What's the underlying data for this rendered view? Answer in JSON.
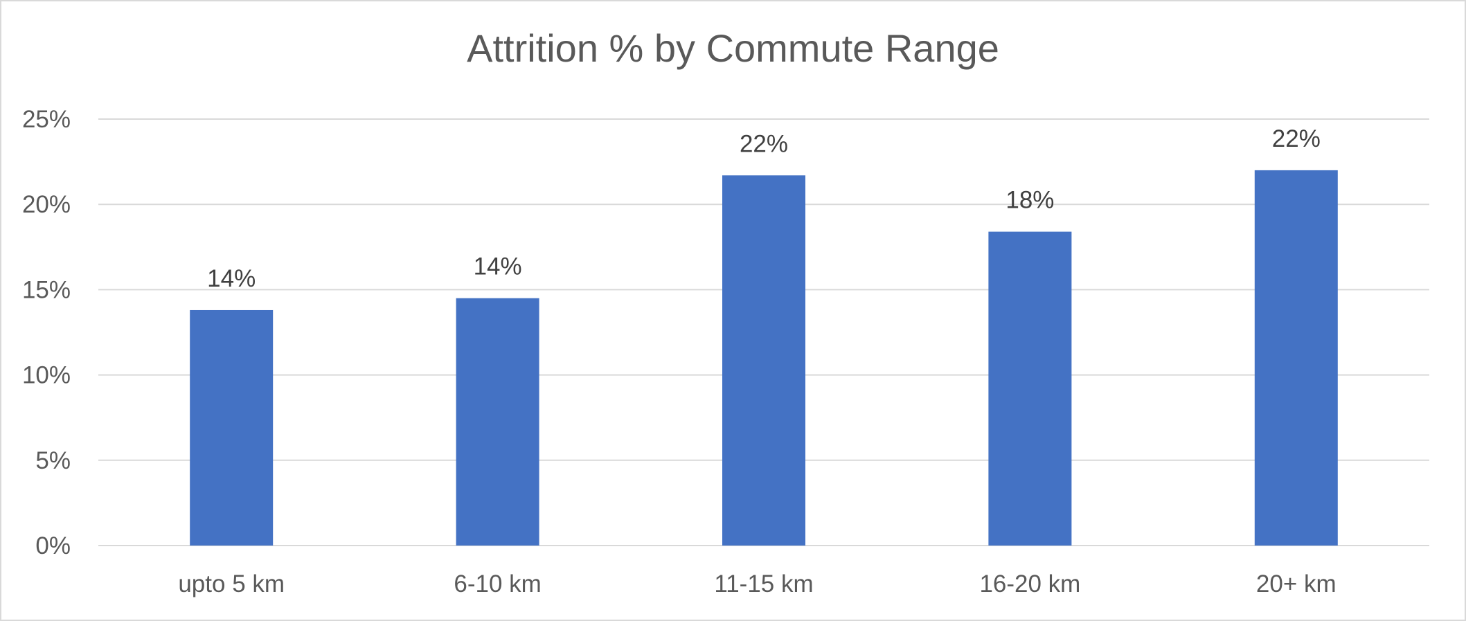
{
  "chart_data": {
    "type": "bar",
    "title": "Attrition % by Commute Range",
    "xlabel": "",
    "ylabel": "",
    "categories": [
      "upto 5 km",
      "6-10 km",
      "11-15 km",
      "16-20 km",
      "20+ km"
    ],
    "values": [
      13.8,
      14.5,
      21.7,
      18.4,
      22.0
    ],
    "data_labels": [
      "14%",
      "14%",
      "22%",
      "18%",
      "22%"
    ],
    "ylim": [
      0,
      25
    ],
    "yticks": [
      0,
      5,
      10,
      15,
      20,
      25
    ],
    "ytick_labels": [
      "0%",
      "5%",
      "10%",
      "15%",
      "20%",
      "25%"
    ],
    "grid": true,
    "legend": "none",
    "bar_color": "#4472c4",
    "grid_color": "#d9d9d9",
    "text_color": "#595959"
  }
}
